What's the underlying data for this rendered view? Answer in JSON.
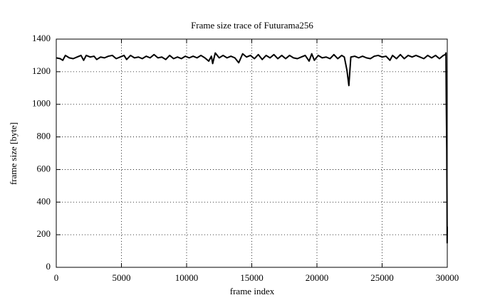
{
  "chart_data": {
    "type": "line",
    "title": "Frame size trace of Futurama256",
    "x_label": "frame index",
    "y_label": "frame size [byte]",
    "x": [
      0,
      300,
      500,
      700,
      1000,
      1300,
      1600,
      1900,
      2100,
      2300,
      2600,
      2900,
      3100,
      3400,
      3700,
      4000,
      4300,
      4600,
      4900,
      5200,
      5400,
      5700,
      6000,
      6300,
      6600,
      6900,
      7200,
      7500,
      7800,
      8100,
      8400,
      8700,
      9000,
      9300,
      9600,
      9900,
      10200,
      10500,
      10800,
      11100,
      11400,
      11700,
      11900,
      12000,
      12200,
      12500,
      12800,
      13100,
      13400,
      13700,
      14000,
      14300,
      14600,
      14900,
      15200,
      15500,
      15800,
      16100,
      16400,
      16700,
      17000,
      17300,
      17600,
      17900,
      18200,
      18500,
      18800,
      19100,
      19400,
      19600,
      19800,
      20100,
      20400,
      20700,
      21000,
      21300,
      21600,
      21900,
      22100,
      22300,
      22450,
      22600,
      22900,
      23200,
      23500,
      23800,
      24100,
      24400,
      24700,
      25000,
      25300,
      25600,
      25800,
      26100,
      26400,
      26700,
      27000,
      27300,
      27600,
      27900,
      28200,
      28500,
      28800,
      29100,
      29400,
      29700,
      29850,
      29900,
      29920,
      29940,
      29960,
      29980,
      29990,
      30000
    ],
    "series": [
      {
        "name": "frame size",
        "color": "#000000",
        "values": [
          1285,
          1280,
          1270,
          1300,
          1285,
          1280,
          1290,
          1300,
          1270,
          1300,
          1290,
          1295,
          1275,
          1290,
          1285,
          1295,
          1300,
          1280,
          1290,
          1300,
          1275,
          1300,
          1285,
          1290,
          1280,
          1295,
          1285,
          1305,
          1285,
          1290,
          1275,
          1300,
          1280,
          1290,
          1280,
          1295,
          1285,
          1295,
          1285,
          1300,
          1285,
          1265,
          1295,
          1250,
          1315,
          1285,
          1300,
          1285,
          1295,
          1285,
          1255,
          1310,
          1290,
          1300,
          1280,
          1305,
          1275,
          1300,
          1285,
          1305,
          1280,
          1300,
          1280,
          1300,
          1285,
          1280,
          1290,
          1300,
          1265,
          1310,
          1270,
          1300,
          1285,
          1290,
          1280,
          1305,
          1280,
          1300,
          1290,
          1210,
          1115,
          1290,
          1295,
          1285,
          1295,
          1285,
          1280,
          1295,
          1300,
          1290,
          1295,
          1270,
          1300,
          1280,
          1305,
          1280,
          1300,
          1290,
          1300,
          1290,
          1280,
          1300,
          1285,
          1300,
          1280,
          1300,
          1305,
          1315,
          1040,
          880,
          720,
          400,
          150,
          250
        ]
      }
    ],
    "xlim": [
      0,
      30000
    ],
    "ylim": [
      0,
      1400
    ],
    "xticks": [
      0,
      5000,
      10000,
      15000,
      20000,
      25000,
      30000
    ],
    "yticks": [
      0,
      200,
      400,
      600,
      800,
      1000,
      1200,
      1400
    ],
    "grid": true
  }
}
